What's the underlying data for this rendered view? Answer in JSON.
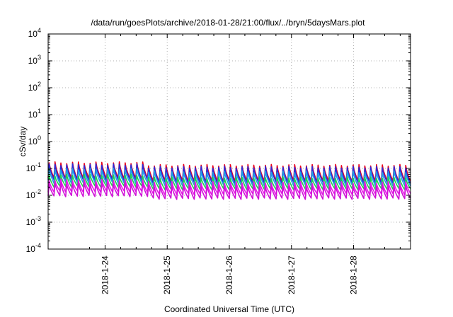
{
  "chart_data": {
    "type": "line",
    "title": "/data/run/goesPlots/archive/2018-01-28/21:00/flux/../bryn/5daysMars.plot",
    "xlabel": "Coordinated Universal Time (UTC)",
    "ylabel": "cSv/day",
    "x_range": [
      "2018-01-23 02:00",
      "2018-01-28 22:00"
    ],
    "x_ticks": [
      "2018-1-24",
      "2018-1-25",
      "2018-1-26",
      "2018-1-27",
      "2018-1-28"
    ],
    "y_scale": "log",
    "ylim": [
      0.0001,
      10000
    ],
    "y_ticks": [
      {
        "base": "10",
        "exp": "-4"
      },
      {
        "base": "10",
        "exp": "-3"
      },
      {
        "base": "10",
        "exp": "-2"
      },
      {
        "base": "10",
        "exp": "-1"
      },
      {
        "base": "10",
        "exp": "0"
      },
      {
        "base": "10",
        "exp": "1"
      },
      {
        "base": "10",
        "exp": "2"
      },
      {
        "base": "10",
        "exp": "3"
      },
      {
        "base": "10",
        "exp": "4"
      }
    ],
    "grid": true,
    "pattern": {
      "cycles": 62,
      "first_block_cycles": 17,
      "first_block_scale": 1.25
    },
    "series": [
      {
        "color": "#e8001c",
        "peak": 0.13,
        "trough": 0.034
      },
      {
        "color": "#2b2bd8",
        "peak": 0.11,
        "trough": 0.029
      },
      {
        "color": "#1ea0e8",
        "peak": 0.075,
        "trough": 0.023
      },
      {
        "color": "#20d050",
        "peak": 0.045,
        "trough": 0.017
      },
      {
        "color": "#e817e8",
        "peak": 0.03,
        "trough": 0.011
      },
      {
        "color": "#d010d8",
        "peak": 0.022,
        "trough": 0.0075
      }
    ]
  }
}
